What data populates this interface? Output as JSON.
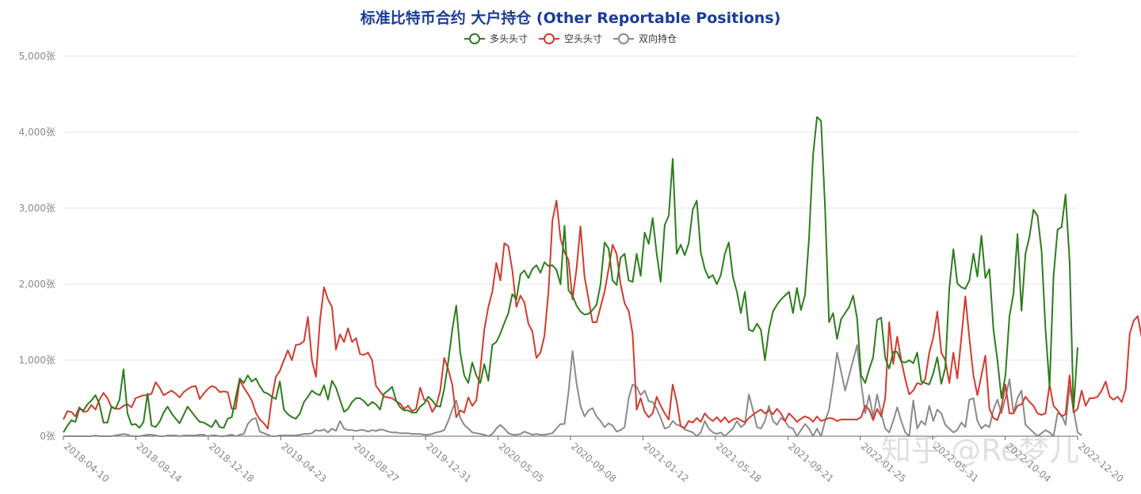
{
  "chart_data": {
    "type": "line",
    "title": "标准比特币合约 大户持仓 (Other Reportable Positions)",
    "xlabel": "",
    "ylabel": "",
    "ylim": [
      0,
      5000
    ],
    "y_ticks": [
      "0张",
      "1,000张",
      "2,000张",
      "3,000张",
      "4,000张",
      "5,000张"
    ],
    "y_tick_values": [
      0,
      1000,
      2000,
      3000,
      4000,
      5000
    ],
    "x_tick_labels": [
      "2018-04-10",
      "2018-08-14",
      "2018-12-18",
      "2019-04-23",
      "2019-08-27",
      "2019-12-31",
      "2020-05-05",
      "2020-09-08",
      "2021-01-12",
      "2021-05-18",
      "2021-09-21",
      "2022-01-25",
      "2022-05-31",
      "2022-10-04",
      "2022-12-20"
    ],
    "grid": "horizontal",
    "legend_position": "top-center",
    "series": [
      {
        "name": "多头头寸",
        "color": "#2e7d1e",
        "values": [
          50,
          140,
          210,
          190,
          360,
          340,
          420,
          470,
          540,
          420,
          180,
          180,
          390,
          360,
          480,
          880,
          300,
          150,
          160,
          110,
          190,
          560,
          140,
          120,
          190,
          310,
          390,
          300,
          230,
          170,
          280,
          390,
          320,
          250,
          190,
          180,
          150,
          120,
          210,
          120,
          110,
          230,
          250,
          510,
          760,
          700,
          800,
          720,
          760,
          660,
          580,
          560,
          520,
          490,
          720,
          350,
          290,
          250,
          230,
          300,
          450,
          520,
          600,
          560,
          540,
          670,
          480,
          730,
          640,
          480,
          320,
          360,
          450,
          500,
          500,
          460,
          400,
          450,
          420,
          350,
          560,
          600,
          650,
          470,
          380,
          340,
          340,
          310,
          310,
          390,
          430,
          520,
          470,
          400,
          390,
          620,
          980,
          1400,
          1720,
          1100,
          800,
          700,
          970,
          800,
          700,
          950,
          730,
          1200,
          1240,
          1350,
          1490,
          1620,
          1870,
          1800,
          2130,
          2180,
          2080,
          2200,
          2250,
          2150,
          2290,
          2240,
          2250,
          2190,
          2000,
          2770,
          1920,
          1850,
          1720,
          1640,
          1600,
          1610,
          1660,
          1730,
          2000,
          2550,
          2470,
          2050,
          1990,
          2350,
          2400,
          2050,
          2030,
          2400,
          2110,
          2680,
          2530,
          2870,
          2400,
          2030,
          2780,
          2900,
          3650,
          2400,
          2520,
          2380,
          2540,
          2980,
          3100,
          2420,
          2200,
          2080,
          2120,
          2000,
          2120,
          2400,
          2550,
          2100,
          1900,
          1620,
          1900,
          1400,
          1380,
          1480,
          1400,
          1000,
          1400,
          1640,
          1730,
          1800,
          1850,
          1900,
          1620,
          1950,
          1660,
          1860,
          2600,
          3700,
          4200,
          4150,
          3000,
          1500,
          1620,
          1280,
          1540,
          1620,
          1700,
          1850,
          1550,
          800,
          700,
          880,
          1040,
          1530,
          1560,
          1030,
          890,
          1110,
          1110,
          980,
          970,
          1000,
          960,
          1100,
          720,
          700,
          680,
          830,
          1040,
          690,
          900,
          1950,
          2460,
          2010,
          1960,
          1940,
          2050,
          2400,
          2100,
          2640,
          2080,
          2200,
          1400,
          1000,
          500,
          800,
          1580,
          1880,
          2660,
          1650,
          2400,
          2630,
          2980,
          2900,
          2440,
          1400,
          650,
          2100,
          2720,
          2750,
          3180,
          2300,
          350,
          1170
        ]
      },
      {
        "name": "空头头寸",
        "color": "#d43a2f",
        "values": [
          220,
          330,
          320,
          260,
          380,
          320,
          330,
          410,
          350,
          480,
          570,
          500,
          380,
          360,
          360,
          400,
          420,
          380,
          500,
          520,
          540,
          540,
          560,
          710,
          640,
          540,
          570,
          600,
          560,
          510,
          580,
          620,
          650,
          660,
          490,
          560,
          620,
          660,
          640,
          580,
          590,
          580,
          360,
          360,
          740,
          640,
          560,
          470,
          310,
          220,
          170,
          100,
          500,
          780,
          860,
          1000,
          1130,
          1000,
          1200,
          1210,
          1250,
          1570,
          1000,
          780,
          1520,
          1960,
          1800,
          1700,
          1140,
          1340,
          1240,
          1420,
          1240,
          1290,
          1080,
          1070,
          1100,
          1000,
          660,
          590,
          520,
          510,
          500,
          460,
          430,
          360,
          400,
          330,
          360,
          640,
          480,
          460,
          320,
          400,
          600,
          1030,
          880,
          680,
          250,
          340,
          310,
          510,
          400,
          470,
          880,
          1400,
          1700,
          1900,
          2280,
          2050,
          2540,
          2500,
          2180,
          1700,
          1850,
          1760,
          1480,
          1380,
          1030,
          1100,
          1320,
          1900,
          2840,
          3100,
          2600,
          2420,
          2320,
          1800,
          2200,
          2760,
          2100,
          1800,
          1500,
          1500,
          1700,
          1900,
          2200,
          2520,
          2400,
          2000,
          1750,
          1650,
          1350,
          350,
          500,
          320,
          250,
          300,
          520,
          400,
          300,
          220,
          680,
          450,
          130,
          110,
          200,
          180,
          240,
          190,
          300,
          240,
          200,
          250,
          190,
          250,
          180,
          220,
          240,
          210,
          180,
          240,
          280,
          320,
          350,
          300,
          340,
          290,
          360,
          300,
          200,
          300,
          250,
          190,
          230,
          260,
          240,
          190,
          260,
          200,
          220,
          240,
          230,
          200,
          220,
          220,
          220,
          220,
          220,
          250,
          400,
          350,
          210,
          360,
          260,
          500,
          1500,
          950,
          1310,
          1000,
          750,
          550,
          600,
          700,
          680,
          750,
          1100,
          1300,
          1640,
          1100,
          1000,
          700,
          1100,
          760,
          1300,
          1840,
          1290,
          800,
          540,
          800,
          1060,
          360,
          240,
          210,
          380,
          680,
          300,
          300,
          400,
          420,
          520,
          450,
          400,
          300,
          280,
          300,
          680,
          400,
          340,
          260,
          290,
          800,
          310,
          360,
          600,
          400,
          500,
          500,
          520,
          600,
          720,
          520,
          480,
          520,
          450,
          620,
          1350,
          1520,
          1580,
          1300,
          1340,
          1380,
          1580
        ]
      },
      {
        "name": "双向持仓",
        "color": "#8a8a8a",
        "values": [
          0,
          0,
          0,
          0,
          0,
          0,
          0,
          0,
          10,
          0,
          0,
          0,
          0,
          10,
          20,
          30,
          20,
          0,
          0,
          0,
          10,
          20,
          20,
          10,
          0,
          0,
          10,
          10,
          10,
          0,
          10,
          10,
          10,
          10,
          20,
          20,
          0,
          10,
          10,
          0,
          0,
          10,
          20,
          0,
          20,
          30,
          160,
          220,
          240,
          60,
          40,
          20,
          0,
          0,
          10,
          10,
          10,
          10,
          10,
          20,
          30,
          30,
          40,
          80,
          70,
          90,
          50,
          100,
          70,
          200,
          100,
          80,
          80,
          70,
          80,
          80,
          60,
          80,
          70,
          90,
          80,
          60,
          50,
          50,
          40,
          40,
          40,
          30,
          30,
          30,
          20,
          20,
          30,
          50,
          60,
          80,
          200,
          350,
          470,
          240,
          150,
          100,
          50,
          40,
          30,
          20,
          0,
          30,
          100,
          150,
          100,
          40,
          20,
          20,
          30,
          60,
          40,
          20,
          30,
          20,
          20,
          30,
          40,
          100,
          160,
          160,
          580,
          1120,
          700,
          400,
          260,
          340,
          370,
          260,
          200,
          120,
          170,
          140,
          60,
          80,
          120,
          500,
          680,
          650,
          540,
          600,
          460,
          450,
          360,
          240,
          100,
          120,
          200,
          150,
          140,
          90,
          70,
          50,
          0,
          50,
          200,
          100,
          50,
          30,
          50,
          0,
          50,
          100,
          200,
          120,
          160,
          550,
          350,
          120,
          100,
          200,
          400,
          200,
          150,
          240,
          200,
          120,
          100,
          0,
          80,
          160,
          100,
          0,
          100,
          0,
          200,
          350,
          700,
          1100,
          850,
          600,
          800,
          1000,
          1200,
          700,
          300,
          540,
          250,
          550,
          300,
          100,
          50,
          200,
          380,
          200,
          50,
          0,
          470,
          100,
          200,
          150,
          400,
          200,
          350,
          300,
          150,
          100,
          50,
          80,
          180,
          120,
          480,
          500,
          200,
          100,
          150,
          120,
          350,
          480,
          300,
          500,
          750,
          300,
          500,
          600,
          150,
          100,
          50,
          0,
          40,
          80,
          50,
          0,
          300,
          280,
          150,
          660,
          350,
          50,
          10
        ]
      }
    ]
  },
  "watermark": "知乎 @Re梦儿"
}
